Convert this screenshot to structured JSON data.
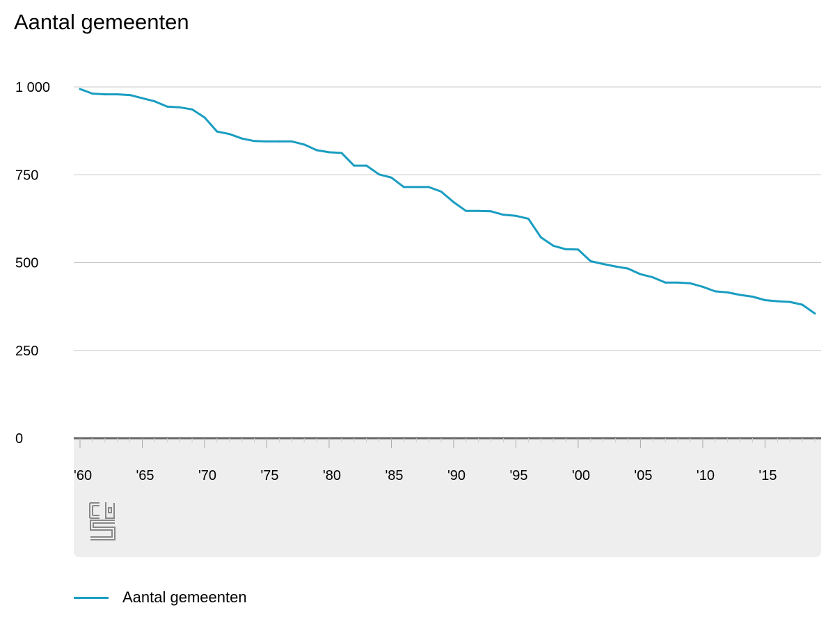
{
  "title": "Aantal gemeenten",
  "colors": {
    "line": "#1a9dc1",
    "grid": "#c8c8c8",
    "axis": "#666666",
    "panel": "#eeeeee",
    "logo": "#888888"
  },
  "legend": {
    "label": "Aantal gemeenten"
  },
  "logo": {
    "icon": "cbs-logo-icon",
    "text": "cbs"
  },
  "chart_data": {
    "type": "line",
    "title": "Aantal gemeenten",
    "xlabel": "",
    "ylabel": "",
    "xlim": [
      1960,
      2019
    ],
    "ylim": [
      0,
      1000
    ],
    "y_ticks": [
      0,
      250,
      500,
      750,
      1000
    ],
    "y_tick_labels": [
      "0",
      "250",
      "500",
      "750",
      "1 000"
    ],
    "x_ticks": [
      1960,
      1965,
      1970,
      1975,
      1980,
      1985,
      1990,
      1995,
      2000,
      2005,
      2010,
      2015
    ],
    "x_tick_labels": [
      "'60",
      "'65",
      "'70",
      "'75",
      "'80",
      "'85",
      "'90",
      "'95",
      "'00",
      "'05",
      "'10",
      "'15"
    ],
    "grid": true,
    "legend_position": "bottom-left",
    "series": [
      {
        "name": "Aantal gemeenten",
        "color": "#1a9dc1",
        "x": [
          1960,
          1961,
          1962,
          1963,
          1964,
          1965,
          1966,
          1967,
          1968,
          1969,
          1970,
          1971,
          1972,
          1973,
          1974,
          1975,
          1976,
          1977,
          1978,
          1979,
          1980,
          1981,
          1982,
          1983,
          1984,
          1985,
          1986,
          1987,
          1988,
          1989,
          1990,
          1991,
          1992,
          1993,
          1994,
          1995,
          1996,
          1997,
          1998,
          1999,
          2000,
          2001,
          2002,
          2003,
          2004,
          2005,
          2006,
          2007,
          2008,
          2009,
          2010,
          2011,
          2012,
          2013,
          2014,
          2015,
          2016,
          2017,
          2018,
          2019
        ],
        "values": [
          994,
          981,
          979,
          979,
          977,
          968,
          959,
          944,
          942,
          936,
          913,
          873,
          866,
          853,
          846,
          845,
          845,
          845,
          836,
          820,
          814,
          812,
          776,
          776,
          751,
          742,
          715,
          715,
          715,
          702,
          672,
          647,
          647,
          646,
          636,
          633,
          625,
          572,
          548,
          538,
          537,
          504,
          496,
          489,
          483,
          467,
          458,
          443,
          443,
          441,
          431,
          418,
          415,
          408,
          403,
          393,
          390,
          388,
          380,
          355
        ]
      }
    ]
  }
}
